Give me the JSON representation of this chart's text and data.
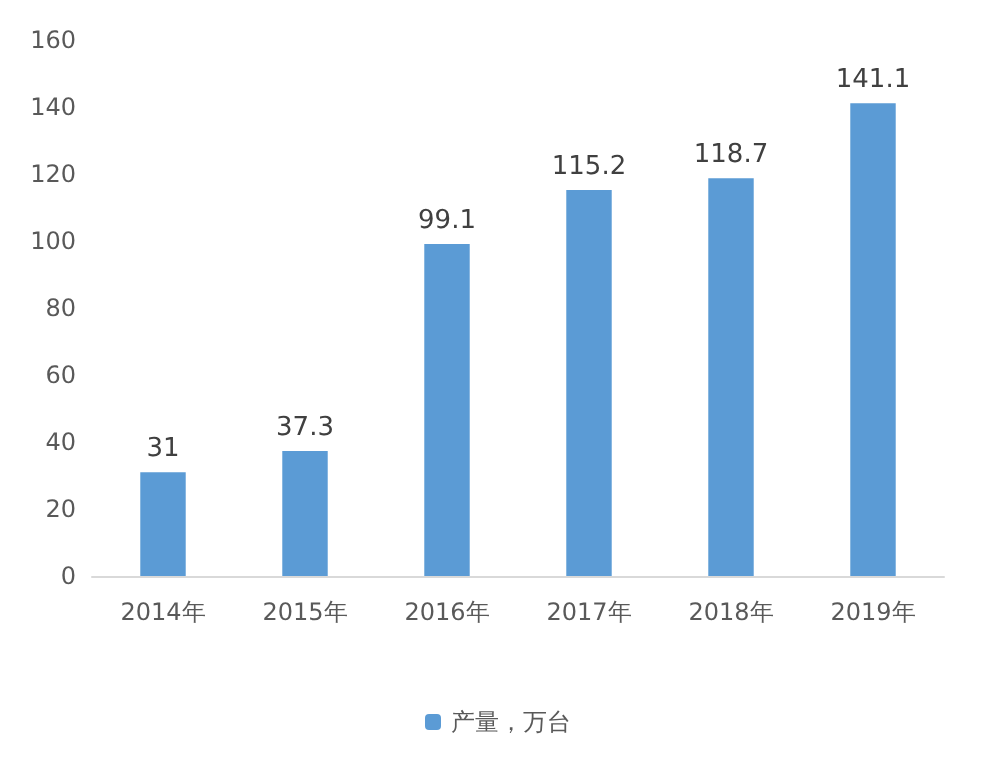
{
  "chart_data": {
    "type": "bar",
    "categories": [
      "2014年",
      "2015年",
      "2016年",
      "2017年",
      "2018年",
      "2019年"
    ],
    "series": [
      {
        "name": "产量，万台",
        "color": "#5b9bd5",
        "values": [
          31,
          37.3,
          99.1,
          115.2,
          118.7,
          141.1
        ]
      }
    ],
    "ylim": [
      0,
      160
    ],
    "yticks": [
      0,
      20,
      40,
      60,
      80,
      100,
      120,
      140,
      160
    ],
    "grid": false,
    "legend": "bottom",
    "data_labels": true
  }
}
